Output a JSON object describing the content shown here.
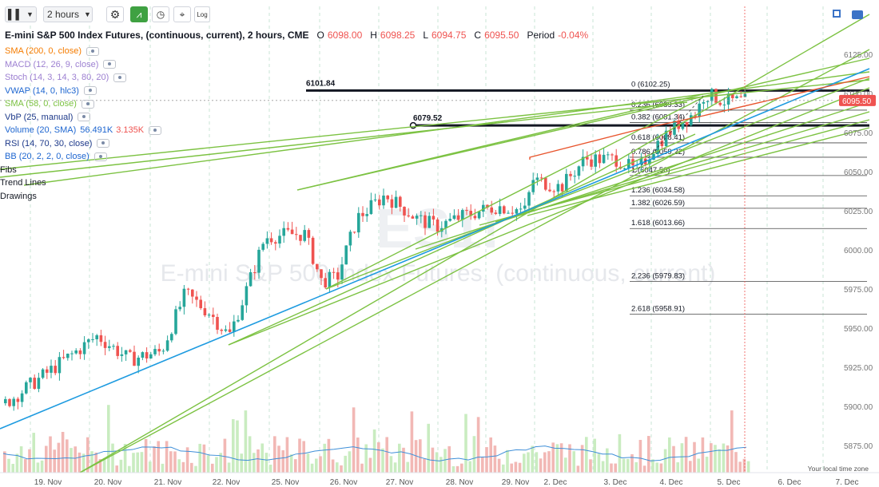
{
  "toolbar": {
    "chart_type_icon": "candles-icon",
    "interval": "2 hours",
    "log_label": "Log",
    "buttons": [
      "gear-icon",
      "line-chart-icon",
      "clock-icon",
      "measure-icon",
      "log-button",
      "fullscreen-icon",
      "camera-icon"
    ]
  },
  "header": {
    "symbol": "E-mini S&P 500 Index Futures, (continuous, current), 2 hours, CME",
    "o_label": "O",
    "o_value": "6098.00",
    "h_label": "H",
    "h_value": "6098.25",
    "l_label": "L",
    "l_value": "6094.75",
    "c_label": "C",
    "c_value": "6095.50",
    "period_label": "Period",
    "period_value": "-0.04%"
  },
  "indicators": [
    {
      "label": "SMA (200, 0, close)",
      "color": "#f57c00"
    },
    {
      "label": "MACD (12, 26, 9, close)",
      "color": "#9c7fd1"
    },
    {
      "label": "Stoch (14, 3, 14, 3, 80, 20)",
      "color": "#9c7fd1"
    },
    {
      "label": "VWAP (14, 0, hlc3)",
      "color": "#1e66d0"
    },
    {
      "label": "SMA (58, 0, close)",
      "color": "#7cc242"
    },
    {
      "label": "VbP (25, manual)",
      "color": "#1e3a8a"
    },
    {
      "label": "Volume (20, SMA)",
      "color": "#1e66d0",
      "v1": "56.491K",
      "v2": "3.135K"
    },
    {
      "label": "RSI (14, 70, 30, close)",
      "color": "#1e3a8a"
    },
    {
      "label": "BB (20, 2, 2, 0, close)",
      "color": "#1e66d0"
    }
  ],
  "groups": [
    "Fibs",
    "Trend Lines",
    "Drawings"
  ],
  "watermark": {
    "ticker": "ES1!",
    "name": "E-mini S&P 500 Index Futures, (continuous, current)"
  },
  "price_axis": {
    "ticks": [
      "6125.00",
      "6100.00",
      "6075.00",
      "6050.00",
      "6025.00",
      "6000.00",
      "5975.00",
      "5950.00",
      "5925.00",
      "5900.00",
      "5875.00"
    ],
    "current_price": "6095.50",
    "current_color": "#ef5350"
  },
  "time_axis": {
    "ticks": [
      "19. Nov",
      "20. Nov",
      "21. Nov",
      "22. Nov",
      "25. Nov",
      "26. Nov",
      "27. Nov",
      "28. Nov",
      "29. Nov",
      "2. Dec",
      "3. Dec",
      "4. Dec",
      "5. Dec",
      "6. Dec",
      "7. Dec"
    ],
    "timezone": "Your local time zone"
  },
  "horizontal_levels": [
    {
      "label": "6101.84",
      "price": 6101.84
    },
    {
      "label": "6079.52",
      "price": 6079.52
    }
  ],
  "fib_levels": [
    {
      "label": "0 (6102.25)",
      "price": 6102.25
    },
    {
      "label": "0.236 (6089.33)",
      "price": 6089.33
    },
    {
      "label": "0.382 (6081.34)",
      "price": 6081.34
    },
    {
      "label": "0.618 (6068.41)",
      "price": 6068.41
    },
    {
      "label": "0.786 (6059.22)",
      "price": 6059.22
    },
    {
      "label": "1 (6047.50)",
      "price": 6047.5
    },
    {
      "label": "1.236 (6034.58)",
      "price": 6034.58
    },
    {
      "label": "1.382 (6026.59)",
      "price": 6026.59
    },
    {
      "label": "1.618 (6013.66)",
      "price": 6013.66
    },
    {
      "label": "2.236 (5979.83)",
      "price": 5979.83
    },
    {
      "label": "2.618 (5958.91)",
      "price": 5958.91
    }
  ],
  "colors": {
    "up": "#26a69a",
    "down": "#ef5350",
    "trend": "#7cc242",
    "blue_trend": "#1e9be0",
    "red_trend": "#e8542c"
  }
}
